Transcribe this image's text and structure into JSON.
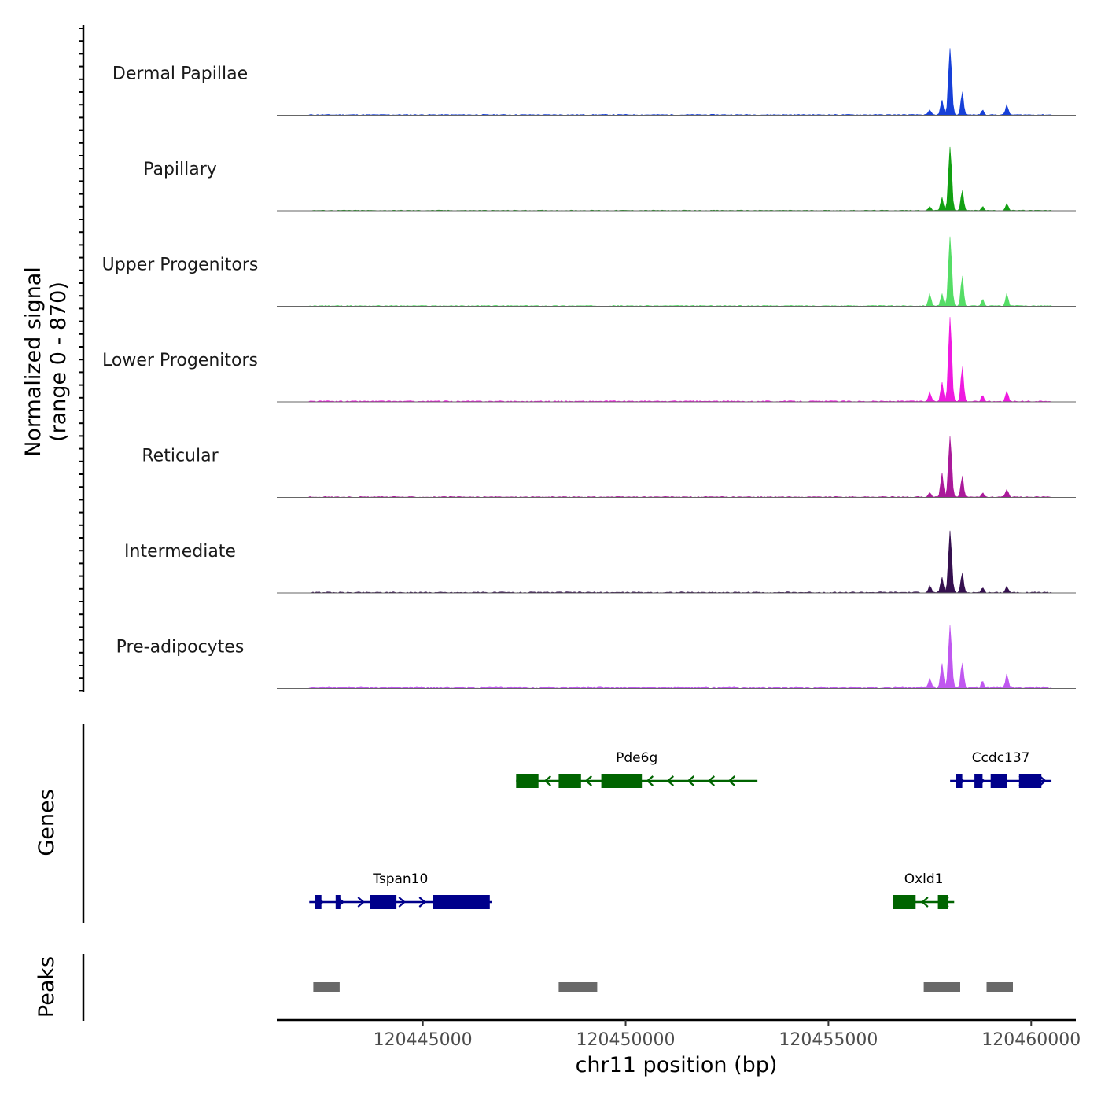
{
  "chart_data": {
    "type": "genome-browser-tracks",
    "chromosome": "chr11",
    "xlabel": "chr11 position (bp)",
    "xlim": [
      120441400,
      120461100
    ],
    "x_ticks": [
      120445000,
      120450000,
      120455000,
      120460000
    ],
    "x_tick_labels": [
      "120445000",
      "120450000",
      "120455000",
      "120460000"
    ],
    "coverage": {
      "ylabel": "Normalized signal",
      "ylabel_range": "(range 0 - 870)",
      "ylim": [
        0,
        870
      ],
      "baseline_noise_window": [
        120442200,
        120460500
      ],
      "peak_positions": [
        120457500,
        120457800,
        120458000,
        120458300,
        120458800,
        120459400
      ],
      "tracks": [
        {
          "name": "Dermal Papillae",
          "color": "#1740d8",
          "peaks": [
            60,
            190,
            850,
            300,
            60,
            130
          ],
          "noise": 12
        },
        {
          "name": "Papillary",
          "color": "#12a012",
          "peaks": [
            50,
            170,
            810,
            270,
            50,
            90
          ],
          "noise": 8
        },
        {
          "name": "Upper Progenitors",
          "color": "#55dd66",
          "peaks": [
            160,
            150,
            880,
            390,
            90,
            150
          ],
          "noise": 12
        },
        {
          "name": "Lower Progenitors",
          "color": "#ef1ae0",
          "peaks": [
            120,
            250,
            1080,
            460,
            80,
            130
          ],
          "noise": 15
        },
        {
          "name": "Reticular",
          "color": "#aa1a9a",
          "peaks": [
            60,
            310,
            770,
            280,
            50,
            100
          ],
          "noise": 12
        },
        {
          "name": "Intermediate",
          "color": "#35104f",
          "peaks": [
            90,
            200,
            780,
            260,
            60,
            80
          ],
          "noise": 14
        },
        {
          "name": "Pre-adipocytes",
          "color": "#c058f0",
          "peaks": [
            110,
            300,
            790,
            330,
            90,
            170
          ],
          "noise": 28
        }
      ]
    },
    "genes": {
      "ylabel": "Genes",
      "items": [
        {
          "name": "Pde6g",
          "strand": "-",
          "color": "#006400",
          "start": 120447300,
          "end": 120453250,
          "exons": [
            [
              120447300,
              120447850
            ],
            [
              120448350,
              120448900
            ],
            [
              120449400,
              120450400
            ]
          ],
          "row": 1
        },
        {
          "name": "Ccdc137",
          "strand": "+",
          "color": "#00008b",
          "start": 120458000,
          "end": 120460500,
          "exons": [
            [
              120458150,
              120458300
            ],
            [
              120458600,
              120458800
            ],
            [
              120459000,
              120459400
            ],
            [
              120459700,
              120460250
            ]
          ],
          "row": 1
        },
        {
          "name": "Tspan10",
          "strand": "+",
          "color": "#00008b",
          "start": 120442200,
          "end": 120446700,
          "exons": [
            [
              120442350,
              120442500
            ],
            [
              120442850,
              120442950
            ],
            [
              120443700,
              120444350
            ],
            [
              120445250,
              120446650
            ]
          ],
          "row": 2
        },
        {
          "name": "Oxld1",
          "strand": "-",
          "color": "#006400",
          "start": 120456600,
          "end": 120458100,
          "exons": [
            [
              120456600,
              120457150
            ],
            [
              120457700,
              120457950
            ]
          ],
          "row": 2
        }
      ]
    },
    "peaks": {
      "ylabel": "Peaks",
      "color": "#696969",
      "regions": [
        [
          120442300,
          120442950
        ],
        [
          120448350,
          120449300
        ],
        [
          120457350,
          120458250
        ],
        [
          120458900,
          120459550
        ]
      ]
    }
  }
}
